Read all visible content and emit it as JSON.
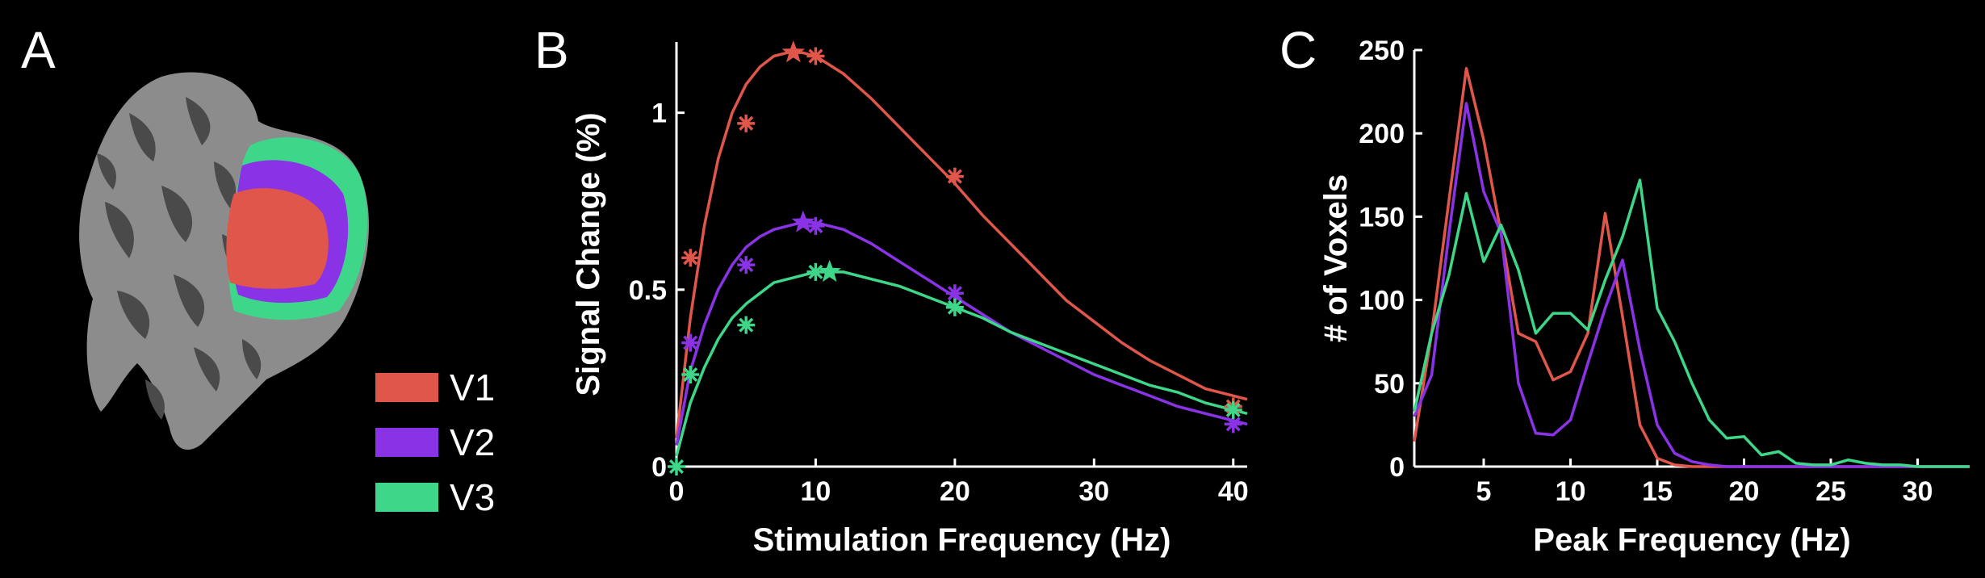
{
  "panel_labels": {
    "a": "A",
    "b": "B",
    "c": "C"
  },
  "colors": {
    "V1": "#e0564a",
    "V2": "#8a33e6",
    "V3": "#3ed688",
    "axis": "#ffffff",
    "background": "#000000",
    "brain_light": "#8c8c8c",
    "brain_dark": "#4a4a4a"
  },
  "legend": [
    {
      "label": "V1",
      "color": "#e0564a"
    },
    {
      "label": "V2",
      "color": "#8a33e6"
    },
    {
      "label": "V3",
      "color": "#3ed688"
    }
  ],
  "chart_data": [
    {
      "id": "B",
      "type": "line",
      "xlabel": "Stimulation Frequency (Hz)",
      "ylabel": "Signal Change (%)",
      "xlim": [
        0,
        41
      ],
      "ylim": [
        0,
        1.2
      ],
      "xticks": [
        0,
        10,
        20,
        30,
        40
      ],
      "yticks": [
        0,
        0.5,
        1
      ],
      "ytick_labels": [
        "0",
        "0.5",
        "1"
      ],
      "markers": [
        {
          "series": "V1",
          "x": [
            1,
            5,
            10,
            20,
            40
          ],
          "y": [
            0.59,
            0.97,
            1.16,
            0.82,
            0.17
          ]
        },
        {
          "series": "V2",
          "x": [
            1,
            5,
            10,
            20,
            40
          ],
          "y": [
            0.35,
            0.57,
            0.68,
            0.49,
            0.12
          ]
        },
        {
          "series": "V3",
          "x": [
            0,
            1,
            5,
            10,
            20,
            40
          ],
          "y": [
            0.0,
            0.26,
            0.4,
            0.55,
            0.45,
            0.16
          ]
        }
      ],
      "peaks": [
        {
          "series": "V1",
          "x": 8.4,
          "y": 1.17
        },
        {
          "series": "V2",
          "x": 9.1,
          "y": 0.69
        },
        {
          "series": "V3",
          "x": 11.0,
          "y": 0.55
        }
      ],
      "fits": [
        {
          "series": "V1",
          "x": [
            0,
            1,
            2,
            3,
            4,
            5,
            6,
            7,
            8,
            9,
            10,
            12,
            14,
            16,
            18,
            20,
            22,
            24,
            26,
            28,
            30,
            32,
            34,
            36,
            38,
            40,
            41
          ],
          "y": [
            0.08,
            0.42,
            0.68,
            0.87,
            1.0,
            1.08,
            1.13,
            1.16,
            1.17,
            1.17,
            1.16,
            1.11,
            1.04,
            0.96,
            0.88,
            0.8,
            0.71,
            0.63,
            0.55,
            0.47,
            0.41,
            0.35,
            0.3,
            0.26,
            0.22,
            0.2,
            0.19
          ]
        },
        {
          "series": "V2",
          "x": [
            0,
            1,
            2,
            3,
            4,
            5,
            6,
            7,
            8,
            9,
            10,
            12,
            14,
            16,
            18,
            20,
            22,
            24,
            26,
            28,
            30,
            32,
            34,
            36,
            38,
            40,
            41
          ],
          "y": [
            0.06,
            0.27,
            0.4,
            0.5,
            0.57,
            0.62,
            0.65,
            0.67,
            0.68,
            0.69,
            0.69,
            0.67,
            0.63,
            0.58,
            0.53,
            0.48,
            0.43,
            0.38,
            0.34,
            0.3,
            0.26,
            0.23,
            0.2,
            0.17,
            0.15,
            0.13,
            0.12
          ]
        },
        {
          "series": "V3",
          "x": [
            0,
            1,
            2,
            3,
            4,
            5,
            6,
            7,
            8,
            9,
            10,
            11,
            12,
            14,
            16,
            18,
            20,
            22,
            24,
            26,
            28,
            30,
            32,
            34,
            36,
            38,
            40,
            41
          ],
          "y": [
            0.03,
            0.18,
            0.28,
            0.36,
            0.42,
            0.46,
            0.49,
            0.52,
            0.53,
            0.54,
            0.55,
            0.55,
            0.55,
            0.53,
            0.51,
            0.48,
            0.45,
            0.42,
            0.38,
            0.35,
            0.32,
            0.29,
            0.26,
            0.23,
            0.21,
            0.18,
            0.16,
            0.15
          ]
        }
      ]
    },
    {
      "id": "C",
      "type": "line",
      "xlabel": "Peak Frequency (Hz)",
      "ylabel": "# of Voxels",
      "xlim": [
        1,
        33
      ],
      "ylim": [
        0,
        250
      ],
      "xticks": [
        5,
        10,
        15,
        20,
        25,
        30
      ],
      "yticks": [
        0,
        50,
        100,
        150,
        200,
        250
      ],
      "series": [
        {
          "name": "V1",
          "x": [
            1,
            2,
            3,
            4,
            5,
            6,
            7,
            8,
            9,
            10,
            11,
            12,
            13,
            14,
            15,
            16,
            17,
            18,
            19,
            20,
            22,
            24,
            26,
            28,
            30,
            32,
            33
          ],
          "y": [
            15,
            80,
            160,
            239,
            196,
            140,
            80,
            75,
            52,
            57,
            80,
            152,
            90,
            25,
            5,
            1,
            0,
            0,
            0,
            0,
            0,
            0,
            0,
            0,
            0,
            0,
            0
          ]
        },
        {
          "name": "V2",
          "x": [
            1,
            2,
            3,
            4,
            5,
            6,
            7,
            8,
            9,
            10,
            11,
            12,
            13,
            14,
            15,
            16,
            17,
            18,
            19,
            20,
            22,
            24,
            26,
            28,
            30,
            32,
            33
          ],
          "y": [
            30,
            55,
            140,
            218,
            165,
            140,
            50,
            20,
            19,
            28,
            62,
            95,
            124,
            70,
            25,
            8,
            3,
            1,
            0,
            0,
            0,
            0,
            0,
            0,
            0,
            0,
            0
          ]
        },
        {
          "name": "V3",
          "x": [
            1,
            2,
            3,
            4,
            5,
            6,
            7,
            8,
            9,
            10,
            11,
            12,
            13,
            14,
            15,
            16,
            17,
            18,
            19,
            20,
            21,
            22,
            23,
            24,
            25,
            26,
            27,
            28,
            29,
            30,
            32,
            33
          ],
          "y": [
            33,
            80,
            115,
            164,
            123,
            145,
            118,
            80,
            92,
            92,
            82,
            112,
            138,
            172,
            95,
            75,
            50,
            28,
            17,
            18,
            7,
            9,
            2,
            1,
            1,
            4,
            2,
            1,
            1,
            0,
            0,
            0
          ]
        }
      ]
    }
  ]
}
